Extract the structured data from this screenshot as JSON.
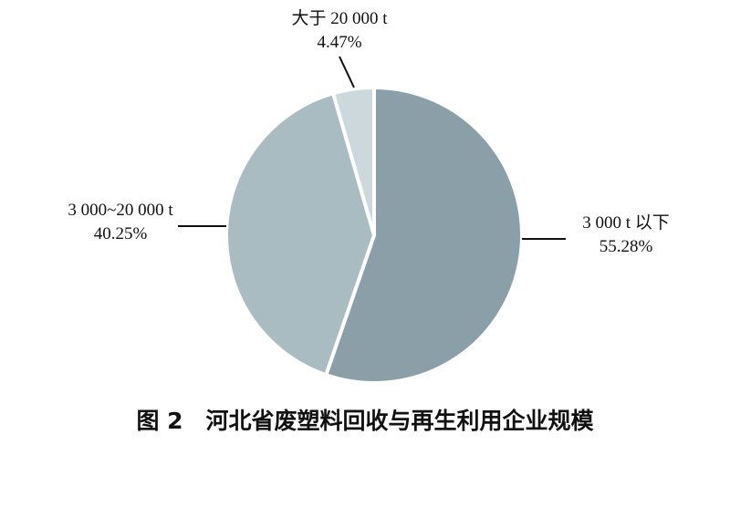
{
  "chart_data": {
    "type": "pie",
    "title": "图 2　河北省废塑料回收与再生利用企业规模",
    "start": "top",
    "direction": "clockwise",
    "slices": [
      {
        "label": "3 000 t 以下",
        "value": 55.28,
        "value_label": "55.28%",
        "color": "#8a9fa7"
      },
      {
        "label": "3 000~20 000 t",
        "value": 40.25,
        "value_label": "40.25%",
        "color": "#a9bcc2"
      },
      {
        "label": "大于 20 000 t",
        "value": 4.47,
        "value_label": "4.47%",
        "color": "#ccd8db"
      }
    ]
  }
}
